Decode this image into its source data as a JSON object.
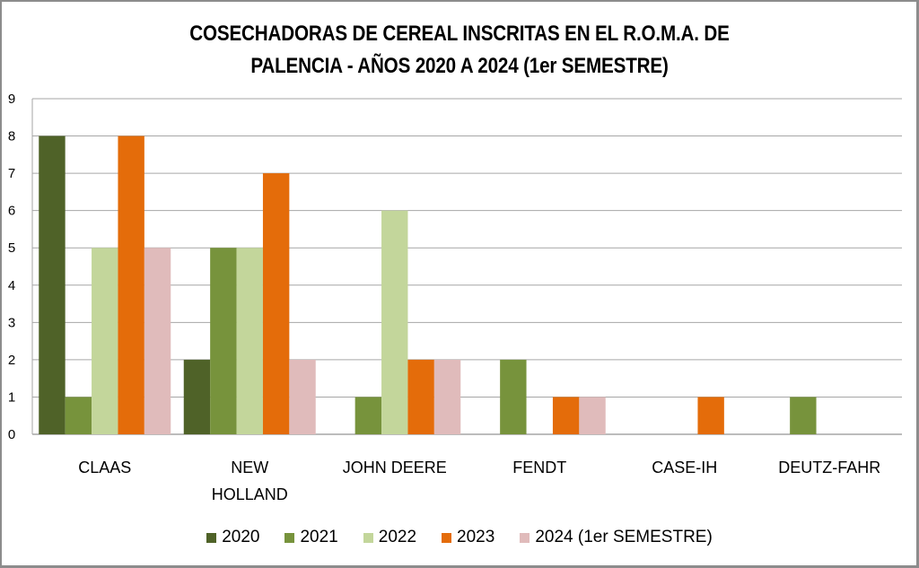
{
  "chart_data": {
    "type": "bar",
    "title": "COSECHADORAS DE CEREAL INSCRITAS EN EL R.O.M.A.  DE PALENCIA - AÑOS 2020 A 2024 (1er SEMESTRE)",
    "title_lines": [
      "COSECHADORAS DE CEREAL INSCRITAS EN EL R.O.M.A.  DE",
      "PALENCIA - AÑOS 2020 A 2024 (1er SEMESTRE)"
    ],
    "xlabel": "",
    "ylabel": "",
    "ylim": [
      0,
      9
    ],
    "yticks": [
      "0",
      "1",
      "2",
      "3",
      "4",
      "5",
      "6",
      "7",
      "8",
      "9"
    ],
    "grid": true,
    "legend_position": "bottom",
    "categories": [
      "CLAAS",
      "NEW HOLLAND",
      "JOHN DEERE",
      "FENDT",
      "CASE-IH",
      "DEUTZ-FAHR"
    ],
    "category_lines": [
      [
        "CLAAS"
      ],
      [
        "NEW",
        "HOLLAND"
      ],
      [
        "JOHN DEERE"
      ],
      [
        "FENDT"
      ],
      [
        "CASE-IH"
      ],
      [
        "DEUTZ-FAHR"
      ]
    ],
    "series": [
      {
        "name": "2020",
        "color": "#4f6228",
        "values": [
          8,
          2,
          0,
          0,
          0,
          0
        ]
      },
      {
        "name": "2021",
        "color": "#77933c",
        "values": [
          1,
          5,
          1,
          2,
          0,
          1
        ]
      },
      {
        "name": "2022",
        "color": "#c3d69b",
        "values": [
          5,
          5,
          6,
          0,
          0,
          0
        ]
      },
      {
        "name": "2023",
        "color": "#e46c0a",
        "values": [
          8,
          7,
          2,
          1,
          1,
          0
        ]
      },
      {
        "name": "2024 (1er SEMESTRE)",
        "color": "#e0bbbb",
        "values": [
          5,
          2,
          2,
          1,
          0,
          0
        ]
      }
    ]
  }
}
